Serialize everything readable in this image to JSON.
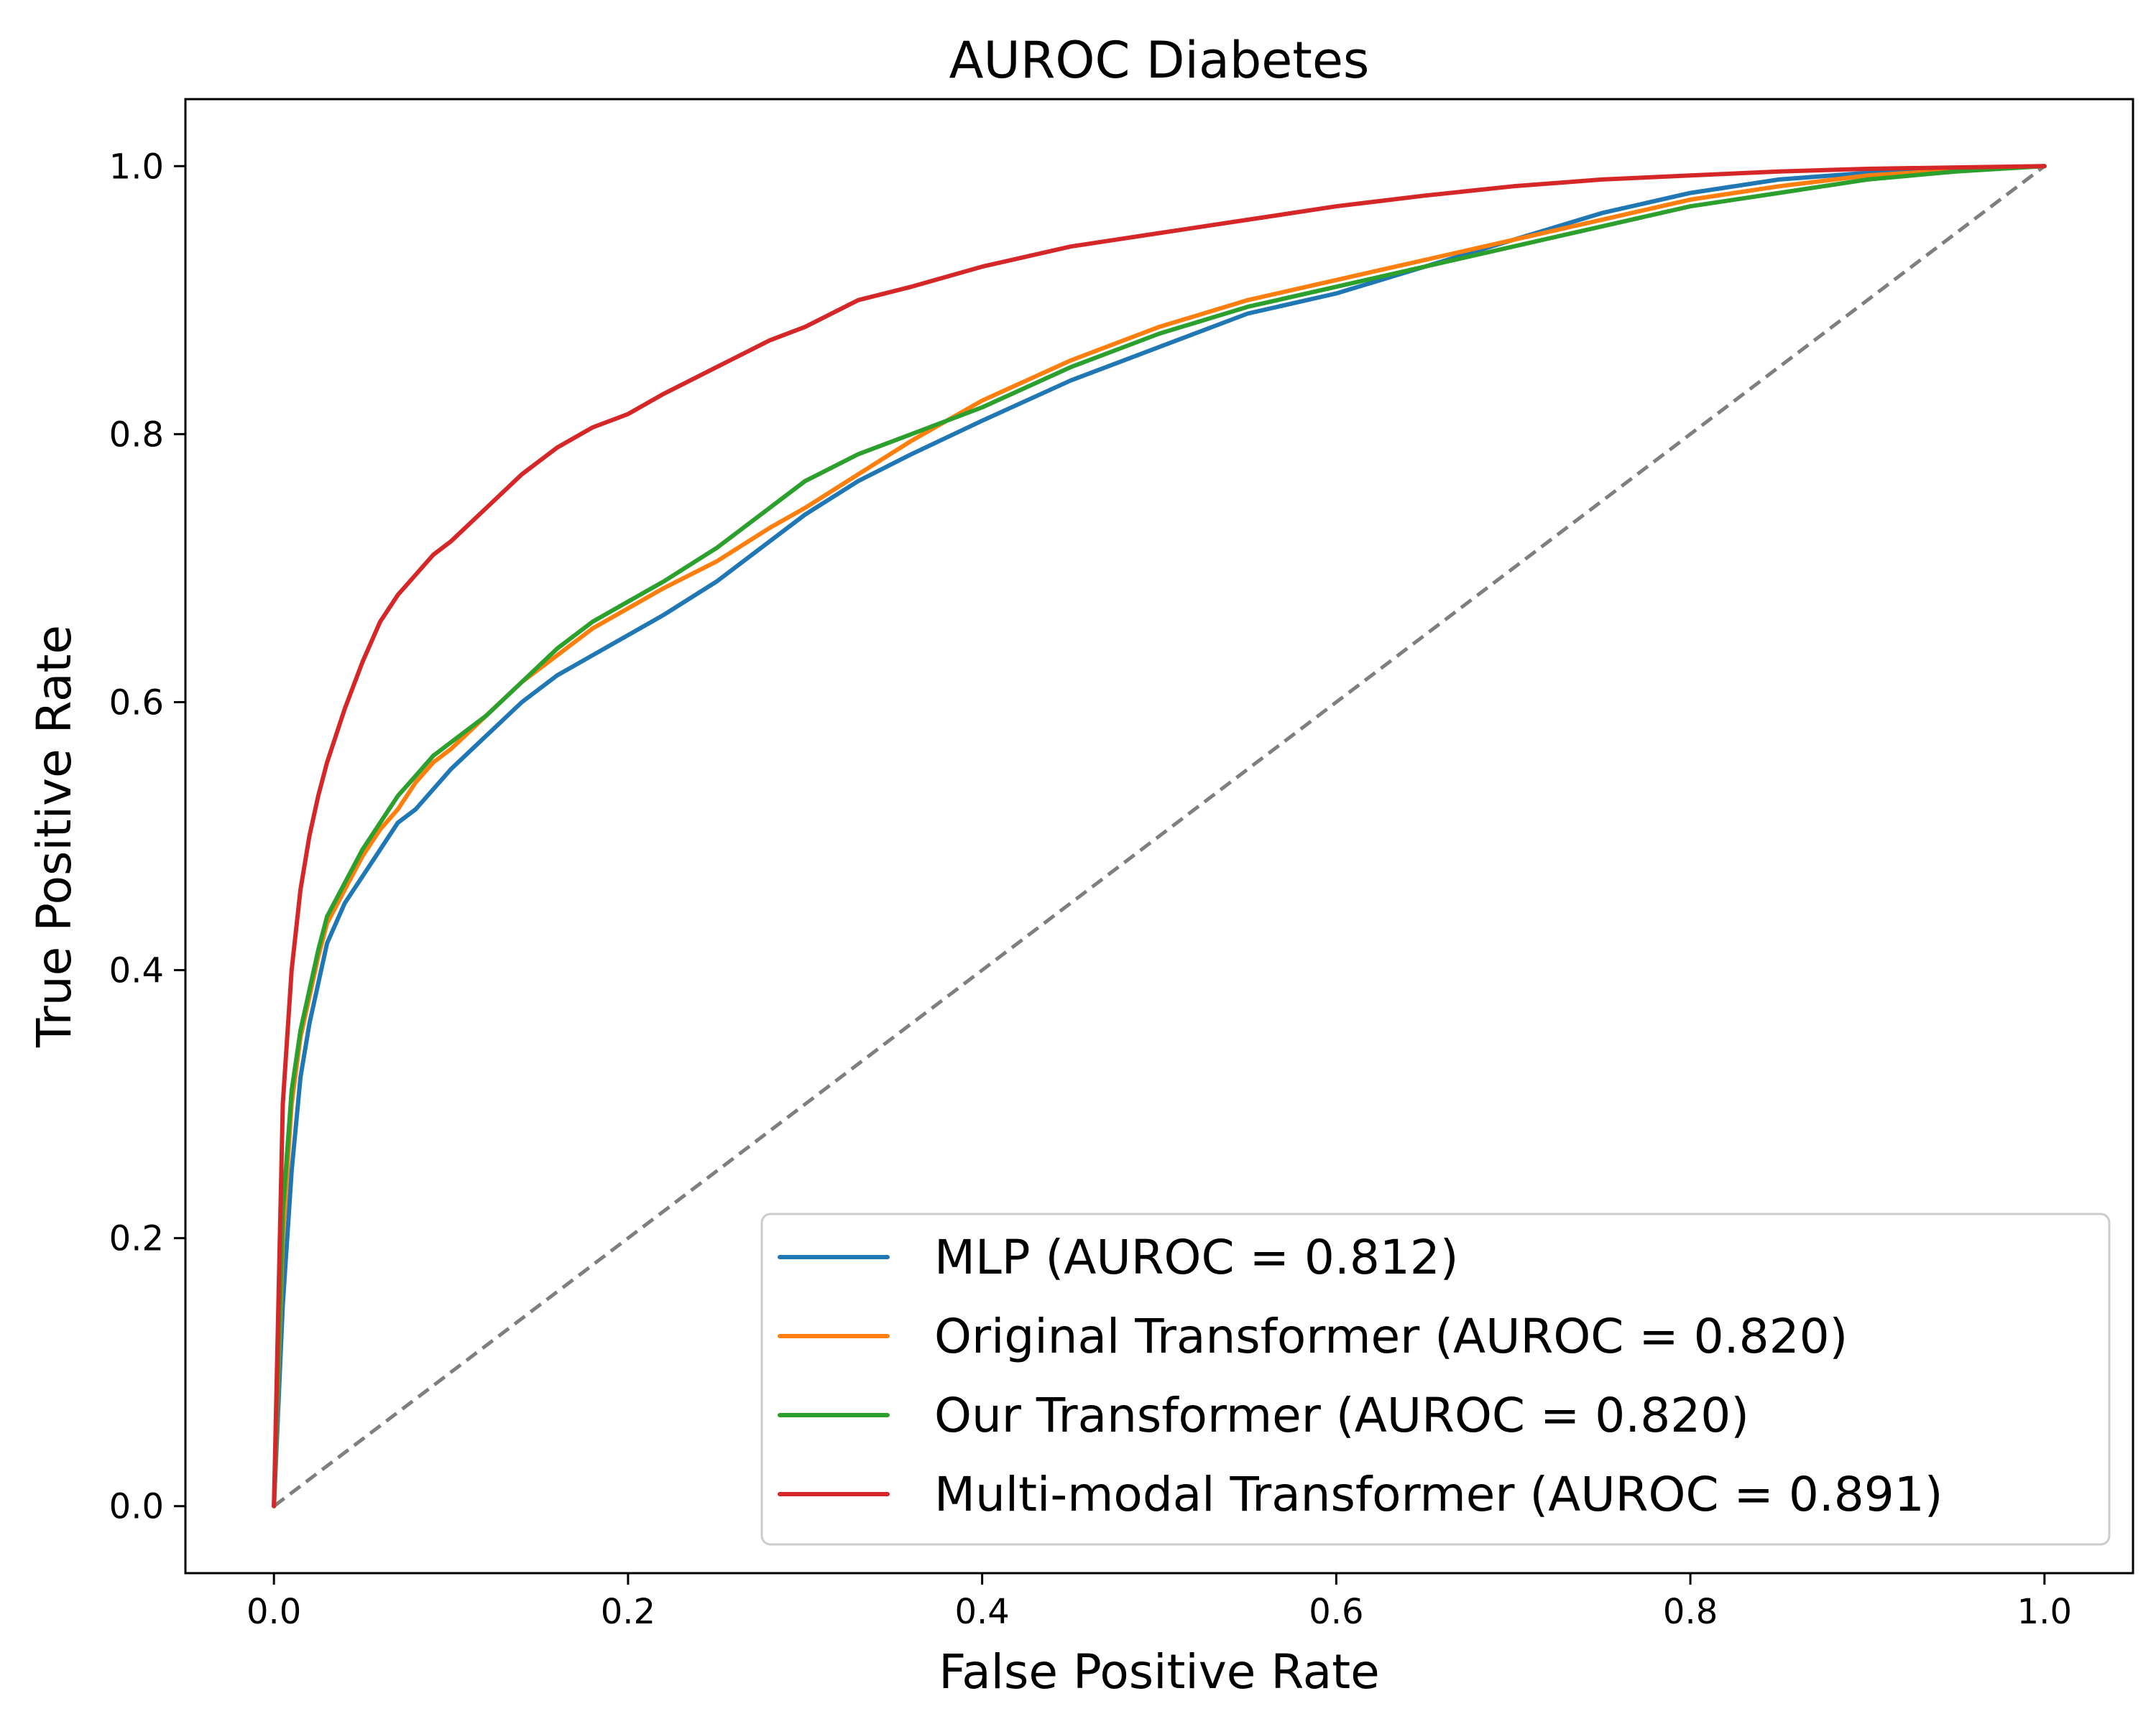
{
  "chart_data": {
    "type": "line",
    "title": "AUROC Diabetes",
    "xlabel": "False Positive Rate",
    "ylabel": "True Positive Rate",
    "xlim": [
      -0.05,
      1.05
    ],
    "ylim": [
      -0.05,
      1.05
    ],
    "xticks": [
      0.0,
      0.2,
      0.4,
      0.6,
      0.8,
      1.0
    ],
    "yticks": [
      0.0,
      0.2,
      0.4,
      0.6,
      0.8,
      1.0
    ],
    "x_tick_labels": [
      "0.0",
      "0.2",
      "0.4",
      "0.6",
      "0.8",
      "1.0"
    ],
    "y_tick_labels": [
      "0.0",
      "0.2",
      "0.4",
      "0.6",
      "0.8",
      "1.0"
    ],
    "grid": false,
    "legend_position": "lower-right",
    "reference_line": {
      "x": [
        0,
        1
      ],
      "y": [
        0,
        1
      ],
      "style": "dashed",
      "color": "#7f7f7f"
    },
    "series": [
      {
        "name": "MLP (AUROC = 0.812)",
        "color": "#1f77b4",
        "x": [
          0,
          0.005,
          0.01,
          0.015,
          0.02,
          0.025,
          0.03,
          0.04,
          0.05,
          0.06,
          0.07,
          0.08,
          0.09,
          0.1,
          0.12,
          0.14,
          0.16,
          0.18,
          0.2,
          0.22,
          0.25,
          0.28,
          0.3,
          0.33,
          0.36,
          0.4,
          0.45,
          0.5,
          0.55,
          0.6,
          0.65,
          0.7,
          0.75,
          0.8,
          0.85,
          0.9,
          0.95,
          1.0
        ],
        "y": [
          0,
          0.15,
          0.25,
          0.32,
          0.36,
          0.39,
          0.42,
          0.45,
          0.47,
          0.49,
          0.51,
          0.52,
          0.535,
          0.55,
          0.575,
          0.6,
          0.62,
          0.635,
          0.65,
          0.665,
          0.69,
          0.72,
          0.74,
          0.765,
          0.785,
          0.81,
          0.84,
          0.865,
          0.89,
          0.905,
          0.925,
          0.945,
          0.965,
          0.98,
          0.99,
          0.995,
          0.998,
          1.0
        ]
      },
      {
        "name": "Original Transformer (AUROC = 0.820)",
        "color": "#ff7f0e",
        "x": [
          0,
          0.005,
          0.01,
          0.015,
          0.02,
          0.025,
          0.03,
          0.04,
          0.05,
          0.06,
          0.07,
          0.08,
          0.09,
          0.1,
          0.12,
          0.14,
          0.16,
          0.18,
          0.2,
          0.22,
          0.25,
          0.28,
          0.3,
          0.33,
          0.36,
          0.4,
          0.45,
          0.5,
          0.55,
          0.6,
          0.65,
          0.7,
          0.75,
          0.8,
          0.85,
          0.9,
          0.95,
          1.0
        ],
        "y": [
          0,
          0.2,
          0.3,
          0.35,
          0.38,
          0.41,
          0.435,
          0.46,
          0.485,
          0.505,
          0.52,
          0.54,
          0.555,
          0.565,
          0.59,
          0.615,
          0.635,
          0.655,
          0.67,
          0.685,
          0.705,
          0.73,
          0.745,
          0.77,
          0.795,
          0.825,
          0.855,
          0.88,
          0.9,
          0.915,
          0.93,
          0.945,
          0.96,
          0.975,
          0.985,
          0.993,
          0.997,
          1.0
        ]
      },
      {
        "name": "Our Transformer (AUROC = 0.820)",
        "color": "#2ca02c",
        "x": [
          0,
          0.005,
          0.01,
          0.015,
          0.02,
          0.025,
          0.03,
          0.04,
          0.05,
          0.06,
          0.07,
          0.08,
          0.09,
          0.1,
          0.12,
          0.14,
          0.16,
          0.18,
          0.2,
          0.22,
          0.25,
          0.28,
          0.3,
          0.33,
          0.36,
          0.4,
          0.45,
          0.5,
          0.55,
          0.6,
          0.65,
          0.7,
          0.75,
          0.8,
          0.85,
          0.9,
          0.95,
          1.0
        ],
        "y": [
          0,
          0.22,
          0.31,
          0.355,
          0.385,
          0.415,
          0.44,
          0.465,
          0.49,
          0.51,
          0.53,
          0.545,
          0.56,
          0.57,
          0.59,
          0.615,
          0.64,
          0.66,
          0.675,
          0.69,
          0.715,
          0.745,
          0.765,
          0.785,
          0.8,
          0.82,
          0.85,
          0.875,
          0.895,
          0.91,
          0.925,
          0.94,
          0.955,
          0.97,
          0.98,
          0.99,
          0.996,
          1.0
        ]
      },
      {
        "name": "Multi-modal Transformer (AUROC = 0.891)",
        "color": "#d62728",
        "x": [
          0,
          0.005,
          0.01,
          0.015,
          0.02,
          0.025,
          0.03,
          0.04,
          0.05,
          0.06,
          0.07,
          0.08,
          0.09,
          0.1,
          0.12,
          0.14,
          0.16,
          0.18,
          0.2,
          0.22,
          0.25,
          0.28,
          0.3,
          0.33,
          0.36,
          0.4,
          0.45,
          0.5,
          0.55,
          0.6,
          0.65,
          0.7,
          0.75,
          0.8,
          0.85,
          0.9,
          0.95,
          1.0
        ],
        "y": [
          0,
          0.3,
          0.4,
          0.46,
          0.5,
          0.53,
          0.555,
          0.595,
          0.63,
          0.66,
          0.68,
          0.695,
          0.71,
          0.72,
          0.745,
          0.77,
          0.79,
          0.805,
          0.815,
          0.83,
          0.85,
          0.87,
          0.88,
          0.9,
          0.91,
          0.925,
          0.94,
          0.95,
          0.96,
          0.97,
          0.978,
          0.985,
          0.99,
          0.993,
          0.996,
          0.998,
          0.999,
          1.0
        ]
      }
    ]
  }
}
